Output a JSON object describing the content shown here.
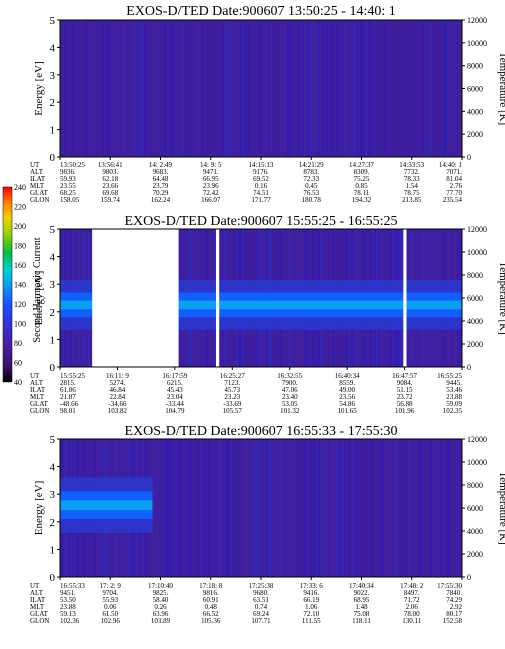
{
  "chart_data": {
    "type": "heatmap",
    "colorbar": {
      "label": "Second Harmonic Current",
      "ticks": [
        "40",
        "60",
        "80",
        "100",
        "120",
        "140",
        "160",
        "180",
        "200",
        "220",
        "240"
      ],
      "colors": [
        "#000000",
        "#3a0f6e",
        "#4b1fa8",
        "#2f35d8",
        "#1a50ff",
        "#0aa0f0",
        "#00d0d0",
        "#00c040",
        "#9ad000",
        "#f0d000",
        "#ff8000",
        "#ff0000"
      ]
    },
    "panels": [
      {
        "id": "panel1",
        "title": "EXOS-D/TED   Date:900607   13:50:25 - 14:40: 1",
        "ylabel": "Energy [eV]",
        "y2label": "Temperature [K]",
        "ylim": [
          0,
          5
        ],
        "y2lim": [
          0,
          12000
        ],
        "yticks": [
          "0",
          "1",
          "2",
          "3",
          "4",
          "5"
        ],
        "y2ticks": [
          "0",
          "2000",
          "4000",
          "6000",
          "8000",
          "10000",
          "12000"
        ],
        "band": null,
        "gaps": [],
        "row_labels": [
          "UT",
          "ALT",
          "ILAT",
          "MLT",
          "GLAT",
          "GLON"
        ],
        "columns": [
          [
            "13:50:25",
            "9836.",
            "59.93",
            "23.55",
            "68.25",
            "158.05"
          ],
          [
            "13:56:41",
            "9803.",
            "62.18",
            "23.66",
            "69.68",
            "159.74"
          ],
          [
            "14: 2:49",
            "9683.",
            "64.48",
            "23.79",
            "70.29",
            "162.24"
          ],
          [
            "14: 9: 5",
            "9471.",
            "66.95",
            "23.96",
            "72.42",
            "166.07"
          ],
          [
            "14:15:13",
            "9176.",
            "69.52",
            "0.16",
            "74.51",
            "171.77"
          ],
          [
            "14:21:29",
            "8783.",
            "72.33",
            "0.45",
            "76.53",
            "180.78"
          ],
          [
            "14:27:37",
            "8309.",
            "75.25",
            "0.85",
            "78.11",
            "194.32"
          ],
          [
            "14:33:53",
            "7732.",
            "78.33",
            "1.54",
            "78.75",
            "213.85"
          ],
          [
            "14:40: 1",
            "7071.",
            "81.04",
            "2.76",
            "77.70",
            "235.54"
          ]
        ]
      },
      {
        "id": "panel2",
        "title": "EXOS-D/TED   Date:900607   15:55:25 - 16:55:25",
        "ylabel": "Energy [eV]",
        "y2label": "Temperature [K]",
        "ylim": [
          0,
          5
        ],
        "y2lim": [
          0,
          12000
        ],
        "yticks": [
          "0",
          "1",
          "2",
          "3",
          "4",
          "5"
        ],
        "y2ticks": [
          "0",
          "2000",
          "4000",
          "6000",
          "8000",
          "10000",
          "12000"
        ],
        "band": {
          "energy_center": [
            2.25,
            2.25
          ],
          "energy_halfwidth": 0.45
        },
        "gaps": [
          [
            0.08,
            0.295
          ],
          [
            0.388,
            0.396
          ],
          [
            0.854,
            0.862
          ]
        ],
        "row_labels": [
          "UT",
          "ALT",
          "ILAT",
          "MLT",
          "GLAT",
          "GLON"
        ],
        "columns": [
          [
            "15:55:25",
            "2815.",
            "61.86",
            "21.87",
            "-48.66",
            "98.01"
          ],
          [
            "16:11: 9",
            "5274.",
            "46.84",
            "22.84",
            "-34.66",
            "103.82"
          ],
          [
            "16:17:59",
            "6215.",
            "45.43",
            "23.04",
            "-33.44",
            "104.79"
          ],
          [
            "16:25:27",
            "7123.",
            "45.73",
            "23.23",
            "-33.69",
            "105.57"
          ],
          [
            "16:32:55",
            "7900.",
            "47.06",
            "23.40",
            "53.05",
            "101.32"
          ],
          [
            "16:40:34",
            "8559.",
            "49.00",
            "23.56",
            "54.86",
            "101.65"
          ],
          [
            "16:47:57",
            "9084.",
            "51.15",
            "23.72",
            "56.88",
            "101.96"
          ],
          [
            "16:55:25",
            "9445.",
            "53.46",
            "23.88",
            "59.09",
            "102.35"
          ]
        ]
      },
      {
        "id": "panel3",
        "title": "EXOS-D/TED   Date:900607   16:55:33 - 17:55:30",
        "ylabel": "Energy [eV]",
        "y2label": "Temperature [K]",
        "ylim": [
          0,
          5
        ],
        "y2lim": [
          0,
          12000
        ],
        "yticks": [
          "0",
          "1",
          "2",
          "3",
          "4",
          "5"
        ],
        "y2ticks": [
          "0",
          "2000",
          "4000",
          "6000",
          "8000",
          "10000",
          "12000"
        ],
        "band": {
          "energy_center": [
            2.6,
            2.6
          ],
          "energy_halfwidth": 0.5,
          "x_end": 0.23
        },
        "gaps": [],
        "row_labels": [
          "UT",
          "ALT",
          "ILAT",
          "MLT",
          "GLAT",
          "GLON"
        ],
        "columns": [
          [
            "16:55:33",
            "9451.",
            "53.50",
            "23.88",
            "59.13",
            "102.36"
          ],
          [
            "17: 2: 9",
            "9704.",
            "55.93",
            "0.06",
            "61.50",
            "102.96"
          ],
          [
            "17:10:40",
            "9825.",
            "58.40",
            "0.26",
            "63.96",
            "103.89"
          ],
          [
            "17:18: 8",
            "9816.",
            "60.91",
            "0.48",
            "66.52",
            "105.36"
          ],
          [
            "17:25:38",
            "9680.",
            "63.51",
            "0.74",
            "69.24",
            "107.71"
          ],
          [
            "17:33: 6",
            "9416.",
            "66.19",
            "1.06",
            "72.10",
            "111.55"
          ],
          [
            "17:40:34",
            "9022.",
            "68.95",
            "1.48",
            "75.08",
            "118.11"
          ],
          [
            "17:48: 2",
            "8497.",
            "71.72",
            "2.06",
            "78.00",
            "130.11"
          ],
          [
            "17:55:30",
            "7840.",
            "74.29",
            "2.92",
            "80.17",
            "152.58"
          ]
        ]
      }
    ]
  }
}
